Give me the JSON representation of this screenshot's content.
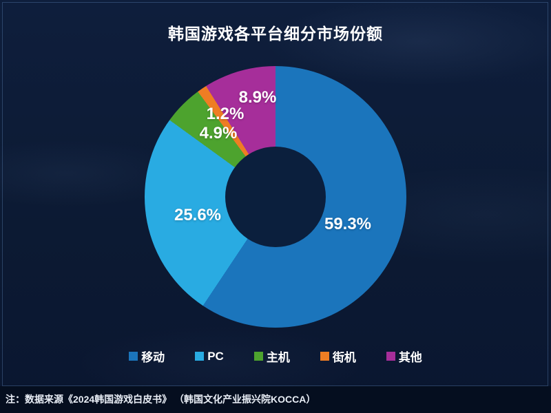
{
  "page": {
    "title": "韩国游戏各平台细分市场份额",
    "footnote": "注：数据来源《2024韩国游戏白皮书》 （韩国文化产业振兴院KOCCA）"
  },
  "colors": {
    "background_base": "#0c1a33",
    "footer_background": "#050e1f",
    "frame_border": "#5f87b9",
    "donut_hole": "#0b1f3d",
    "text": "#ffffff"
  },
  "chart_data": {
    "type": "pie",
    "donut": true,
    "title": "韩国游戏各平台细分市场份额",
    "start_angle_deg": 0,
    "direction": "clockwise",
    "legend_position": "bottom",
    "categories": [
      "移动",
      "PC",
      "主机",
      "街机",
      "其他"
    ],
    "values": [
      59.3,
      25.6,
      4.9,
      1.2,
      8.9
    ],
    "unit": "%",
    "slice_labels": [
      "59.3%",
      "25.6%",
      "4.9%",
      "1.2%",
      "8.9%"
    ],
    "colors": [
      "#1b75bc",
      "#29abe2",
      "#4da32e",
      "#ef7d23",
      "#a62e9a"
    ],
    "source_note": "注：数据来源《2024韩国游戏白皮书》 （韩国文化产业振兴院KOCCA）"
  }
}
